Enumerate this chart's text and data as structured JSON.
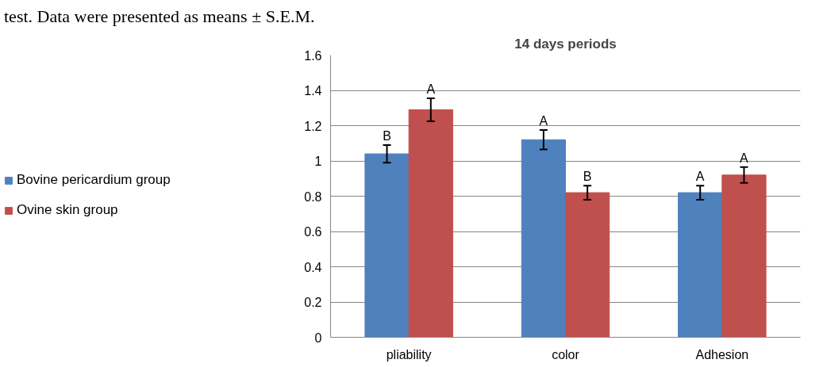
{
  "chart_data": {
    "type": "bar",
    "title": "14 days periods",
    "categories": [
      "pliability",
      "color",
      "Adhesion"
    ],
    "series": [
      {
        "name": "Bovine pericardium group",
        "color": "#4f81bd",
        "values": [
          1.04,
          1.12,
          0.82
        ],
        "errors": [
          0.05,
          0.055,
          0.04
        ]
      },
      {
        "name": "Ovine skin group",
        "color": "#c0504d",
        "values": [
          1.29,
          0.82,
          0.92
        ],
        "errors": [
          0.065,
          0.04,
          0.045
        ]
      }
    ],
    "ylim": [
      0,
      1.6
    ],
    "yticks": [
      0,
      0.2,
      0.4,
      0.6,
      0.8,
      1,
      1.2,
      1.4,
      1.6
    ],
    "grid": "y",
    "legend": "left",
    "annotations": [
      "test. Data were presented as means ± S.E.M.",
      {
        "text": "B",
        "x": "pliability",
        "y": 1.04
      },
      {
        "text": "A",
        "x": "pliability",
        "y": 1.29
      },
      {
        "text": "A",
        "x": "color",
        "y": 1.12
      },
      {
        "text": "B",
        "x": "color",
        "y": 0.82
      },
      {
        "text": "A",
        "x": "Adhesion",
        "y": 0.82
      },
      {
        "text": "A",
        "x": "Adhesion",
        "y": 0.92
      }
    ]
  }
}
